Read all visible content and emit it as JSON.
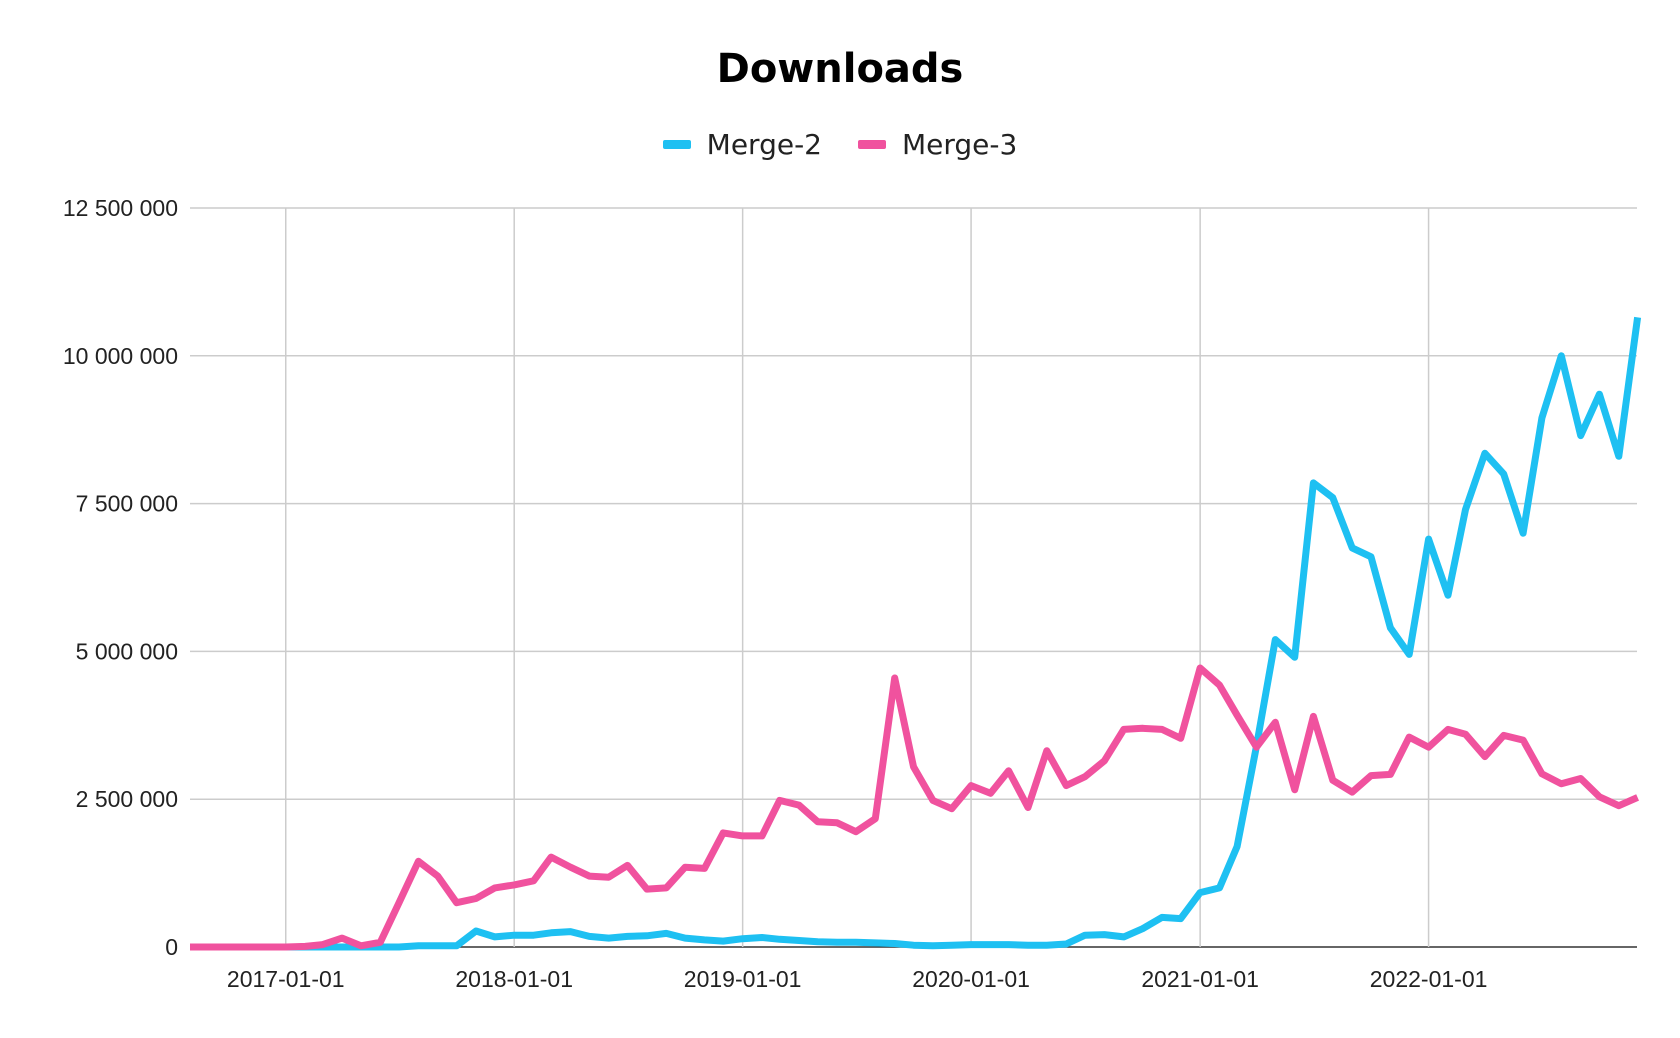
{
  "chart_data": {
    "type": "line",
    "title": "Downloads",
    "xlabel": "",
    "ylabel": "",
    "ylim": [
      0,
      12500000
    ],
    "yticks": [
      0,
      2500000,
      5000000,
      7500000,
      10000000,
      12500000
    ],
    "ytick_labels": [
      "0",
      "2 500 000",
      "5 000 000",
      "7 500 000",
      "10 000 000",
      "12 500 000"
    ],
    "xlim": [
      "2016-08-01",
      "2022-11-30"
    ],
    "xticks": [
      "2017-01-01",
      "2018-01-01",
      "2019-01-01",
      "2020-01-01",
      "2021-01-01",
      "2022-01-01"
    ],
    "grid": true,
    "legend_position": "top-center",
    "x": [
      "2016-08",
      "2016-09",
      "2016-10",
      "2016-11",
      "2016-12",
      "2017-01",
      "2017-02",
      "2017-03",
      "2017-04",
      "2017-05",
      "2017-06",
      "2017-07",
      "2017-08",
      "2017-09",
      "2017-10",
      "2017-11",
      "2017-12",
      "2018-01",
      "2018-02",
      "2018-03",
      "2018-04",
      "2018-05",
      "2018-06",
      "2018-07",
      "2018-08",
      "2018-09",
      "2018-10",
      "2018-11",
      "2018-12",
      "2019-01",
      "2019-02",
      "2019-03",
      "2019-04",
      "2019-05",
      "2019-06",
      "2019-07",
      "2019-08",
      "2019-09",
      "2019-10",
      "2019-11",
      "2019-12",
      "2020-01",
      "2020-02",
      "2020-03",
      "2020-04",
      "2020-05",
      "2020-06",
      "2020-07",
      "2020-08",
      "2020-09",
      "2020-10",
      "2020-11",
      "2020-12",
      "2021-01",
      "2021-02",
      "2021-03",
      "2021-04",
      "2021-05",
      "2021-06",
      "2021-07",
      "2021-08",
      "2021-09",
      "2021-10",
      "2021-11",
      "2021-12",
      "2022-01",
      "2022-02",
      "2022-03",
      "2022-04",
      "2022-05",
      "2022-06",
      "2022-07",
      "2022-08",
      "2022-09",
      "2022-10",
      "2022-11",
      "2022-12"
    ],
    "series": [
      {
        "name": "Merge-2",
        "color": "#1ec0f2",
        "values": [
          0,
          0,
          0,
          0,
          0,
          0,
          0,
          0,
          0,
          0,
          0,
          0,
          20000,
          20000,
          20000,
          270000,
          170000,
          200000,
          200000,
          240000,
          260000,
          180000,
          150000,
          180000,
          190000,
          230000,
          150000,
          120000,
          100000,
          140000,
          160000,
          130000,
          110000,
          90000,
          80000,
          80000,
          70000,
          60000,
          30000,
          20000,
          30000,
          40000,
          40000,
          40000,
          30000,
          30000,
          50000,
          200000,
          210000,
          170000,
          310000,
          500000,
          480000,
          920000,
          1000000,
          1700000,
          3400000,
          5200000,
          4900000,
          7850000,
          7600000,
          6750000,
          6600000,
          5400000,
          4950000,
          6900000,
          5950000,
          7400000,
          8350000,
          8000000,
          7000000,
          8950000,
          10000000,
          8650000,
          9350000,
          8300000,
          10650000
        ]
      },
      {
        "name": "Merge-3",
        "color": "#f0529e",
        "values": [
          0,
          0,
          0,
          0,
          0,
          0,
          10000,
          40000,
          150000,
          20000,
          80000,
          750000,
          1450000,
          1200000,
          750000,
          820000,
          1000000,
          1050000,
          1120000,
          1520000,
          1350000,
          1200000,
          1180000,
          1380000,
          980000,
          1000000,
          1350000,
          1330000,
          1930000,
          1880000,
          1880000,
          2480000,
          2400000,
          2120000,
          2100000,
          1950000,
          2170000,
          4550000,
          3050000,
          2480000,
          2340000,
          2730000,
          2600000,
          2980000,
          2360000,
          3320000,
          2730000,
          2880000,
          3150000,
          3680000,
          3700000,
          3680000,
          3530000,
          4720000,
          4430000,
          3920000,
          3380000,
          3800000,
          2660000,
          3900000,
          2820000,
          2620000,
          2900000,
          2920000,
          3550000,
          3380000,
          3680000,
          3600000,
          3220000,
          3580000,
          3500000,
          2930000,
          2760000,
          2850000,
          2540000,
          2390000,
          2530000
        ]
      }
    ]
  }
}
